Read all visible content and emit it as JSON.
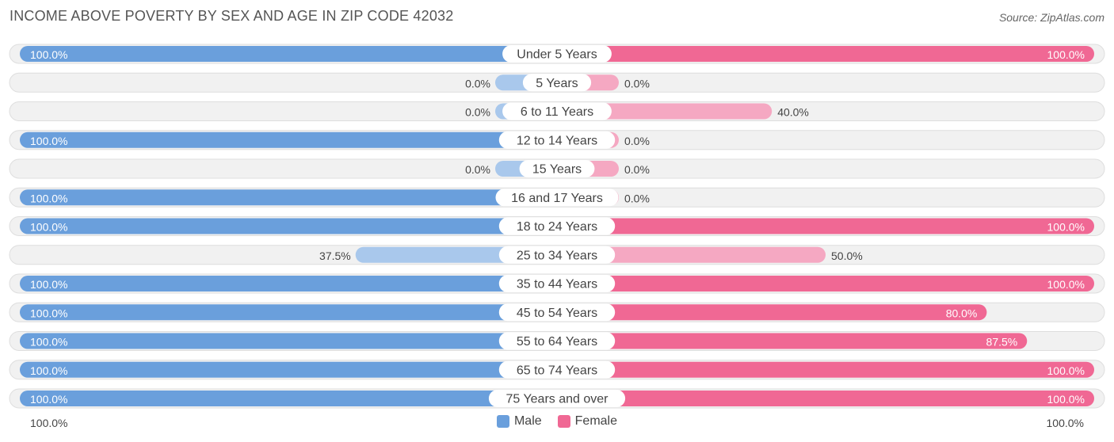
{
  "title": "INCOME ABOVE POVERTY BY SEX AND AGE IN ZIP CODE 42032",
  "source": "Source: ZipAtlas.com",
  "colors": {
    "male_strong": "#6a9fdc",
    "male_light": "#a9c8ec",
    "female_strong": "#f06894",
    "female_light": "#f5a8c2",
    "track": "#efefef"
  },
  "legend": {
    "male": "Male",
    "female": "Female"
  },
  "axis": {
    "left_label": "100.0%",
    "right_label": "100.0%"
  },
  "chart_data": {
    "type": "bar",
    "orientation": "diverging-horizontal",
    "categories": [
      "Under 5 Years",
      "5 Years",
      "6 to 11 Years",
      "12 to 14 Years",
      "15 Years",
      "16 and 17 Years",
      "18 to 24 Years",
      "25 to 34 Years",
      "35 to 44 Years",
      "45 to 54 Years",
      "55 to 64 Years",
      "65 to 74 Years",
      "75 Years and over"
    ],
    "series": [
      {
        "name": "Male",
        "values": [
          100,
          0,
          0,
          100,
          0,
          100,
          100,
          37.5,
          100,
          100,
          100,
          100,
          100
        ],
        "labels": [
          "100.0%",
          "0.0%",
          "0.0%",
          "100.0%",
          "0.0%",
          "100.0%",
          "100.0%",
          "37.5%",
          "100.0%",
          "100.0%",
          "100.0%",
          "100.0%",
          "100.0%"
        ]
      },
      {
        "name": "Female",
        "values": [
          100,
          0,
          40,
          0,
          0,
          0,
          100,
          50,
          100,
          80,
          87.5,
          100,
          100
        ],
        "labels": [
          "100.0%",
          "0.0%",
          "40.0%",
          "0.0%",
          "0.0%",
          "0.0%",
          "100.0%",
          "50.0%",
          "100.0%",
          "80.0%",
          "87.5%",
          "100.0%",
          "100.0%"
        ]
      }
    ],
    "xlim": [
      -100,
      100
    ]
  }
}
